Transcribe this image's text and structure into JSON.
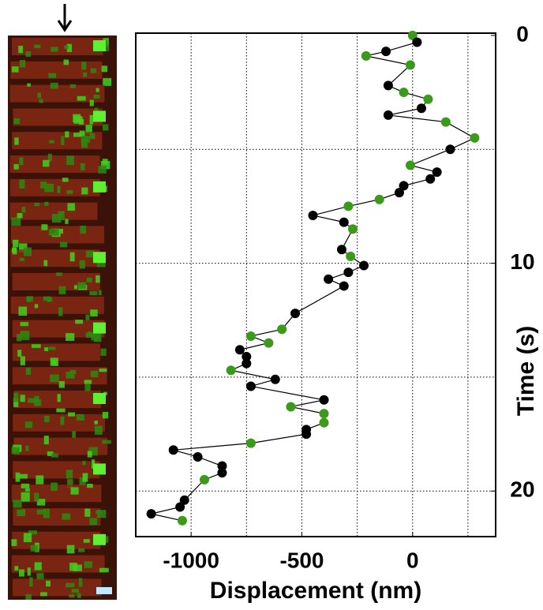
{
  "chart_data": {
    "type": "scatter",
    "x_label": "Displacement (nm)",
    "y_label": "Time (s)",
    "x": [
      0,
      20,
      -120,
      -210,
      -10,
      -110,
      -40,
      70,
      40,
      -110,
      150,
      280,
      170,
      -10,
      110,
      80,
      -40,
      -60,
      -150,
      -290,
      -450,
      -310,
      -270,
      -320,
      -280,
      -220,
      -290,
      -380,
      -310,
      -530,
      -590,
      -730,
      -650,
      -780,
      -750,
      -750,
      -820,
      -620,
      -730,
      -400,
      -550,
      -400,
      -400,
      -480,
      -480,
      -730,
      -1080,
      -970,
      -860,
      -860,
      -940,
      -1030,
      -1050,
      -1180,
      -1040
    ],
    "values": [
      0,
      0.3,
      0.7,
      0.9,
      1.3,
      2.2,
      2.5,
      2.8,
      3.2,
      3.5,
      3.8,
      4.5,
      5.0,
      5.7,
      6.0,
      6.3,
      6.6,
      6.9,
      7.2,
      7.5,
      7.9,
      8.2,
      8.5,
      9.4,
      9.7,
      10.1,
      10.4,
      10.7,
      11.0,
      12.2,
      12.9,
      13.2,
      13.5,
      13.8,
      14.1,
      14.4,
      14.7,
      15.1,
      15.4,
      16.0,
      16.3,
      16.6,
      17.0,
      17.3,
      17.5,
      17.9,
      18.2,
      18.5,
      18.9,
      19.2,
      19.5,
      20.4,
      20.7,
      21.0,
      21.3
    ],
    "point_colors": [
      "#3a9a1a",
      "#000",
      "#000",
      "#3a9a1a",
      "#3a9a1a",
      "#000",
      "#3a9a1a",
      "#3a9a1a",
      "#000",
      "#000",
      "#3a9a1a",
      "#3a9a1a",
      "#000",
      "#3a9a1a",
      "#000",
      "#000",
      "#000",
      "#000",
      "#3a9a1a",
      "#3a9a1a",
      "#000",
      "#000",
      "#3a9a1a",
      "#000",
      "#3a9a1a",
      "#000",
      "#000",
      "#000",
      "#000",
      "#000",
      "#3a9a1a",
      "#3a9a1a",
      "#3a9a1a",
      "#000",
      "#000",
      "#000",
      "#3a9a1a",
      "#000",
      "#000",
      "#000",
      "#3a9a1a",
      "#3a9a1a",
      "#3a9a1a",
      "#000",
      "#000",
      "#3a9a1a",
      "#000",
      "#000",
      "#000",
      "#000",
      "#3a9a1a",
      "#000",
      "#000",
      "#000",
      "#3a9a1a"
    ],
    "line_color": "#000",
    "xlim": [
      -1250,
      375
    ],
    "xticks": [
      -1000,
      -500,
      0
    ],
    "xgrid": [
      -1000,
      -750,
      -500,
      -250,
      0,
      250
    ],
    "ylim": [
      -0.1,
      22
    ],
    "yticks": [
      0,
      10,
      20
    ],
    "ygrid": [
      5,
      10,
      15,
      20
    ],
    "y_inverted": true,
    "y_axis_side": "right",
    "grid": true
  }
}
